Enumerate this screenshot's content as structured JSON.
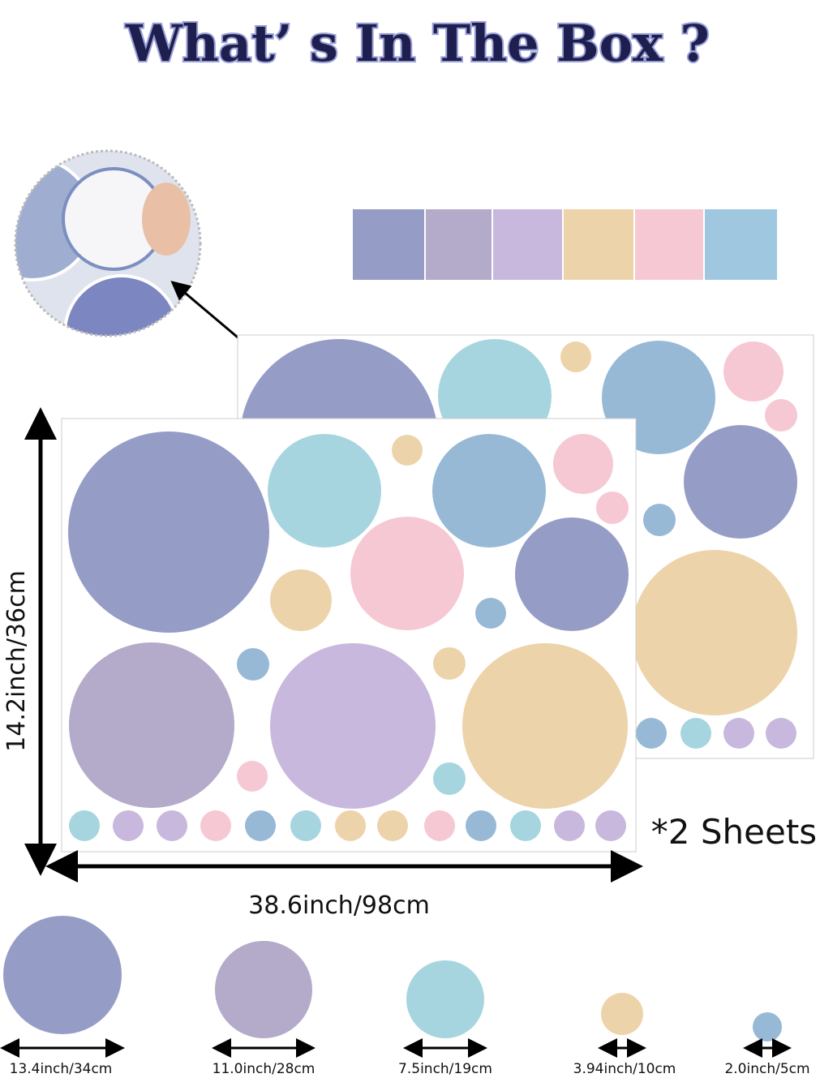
{
  "header": {
    "title": "What’ s In The Box ?"
  },
  "sheets": {
    "height": "14.2inch/36cm",
    "width": "38.6inch/98cm",
    "count": "*2 Sheets"
  },
  "sizes": [
    {
      "label": "13.4inch/34cm"
    },
    {
      "label": "11.0inch/28cm"
    },
    {
      "label": "7.5inch/19cm"
    },
    {
      "label": "3.94inch/10cm"
    },
    {
      "label": "2.0inch/5cm"
    }
  ]
}
